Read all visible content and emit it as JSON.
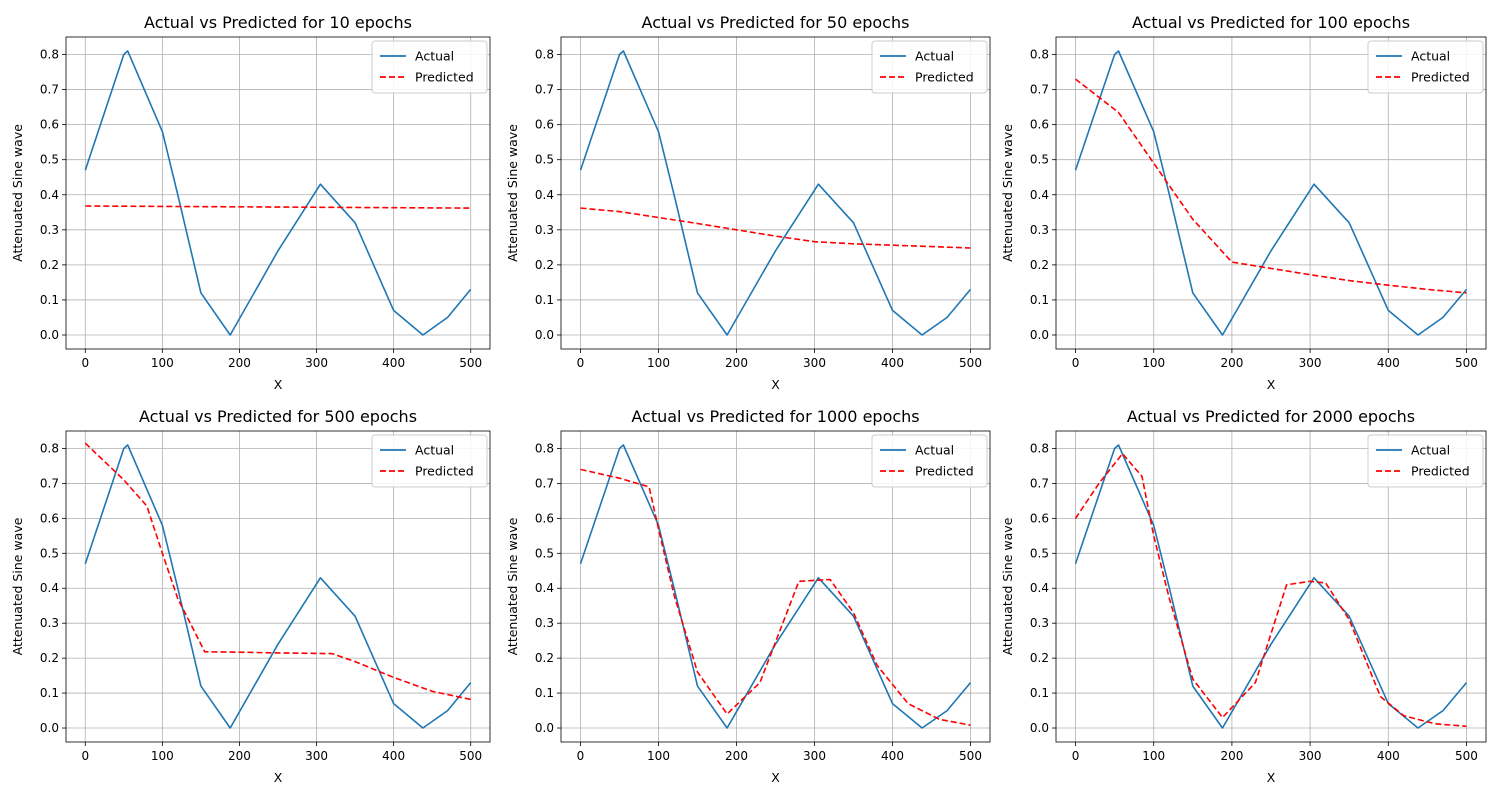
{
  "figure": {
    "colors": {
      "actual": "#1f77b4",
      "predicted": "#ff0000",
      "grid": "#b0b0b0",
      "axes": "#000000"
    }
  },
  "chart_data": [
    {
      "type": "line",
      "title": "Actual vs Predicted for 10 epochs",
      "xlabel": "X",
      "ylabel": "Attenuated Sine wave",
      "xlim": [
        -25,
        525
      ],
      "ylim": [
        -0.04,
        0.85
      ],
      "xticks": [
        0,
        100,
        200,
        300,
        400,
        500
      ],
      "yticks": [
        0.0,
        0.1,
        0.2,
        0.3,
        0.4,
        0.5,
        0.6,
        0.7,
        0.8
      ],
      "ytick_labels": [
        "0.0",
        "0.1",
        "0.2",
        "0.3",
        "0.4",
        "0.5",
        "0.6",
        "0.7",
        "0.8"
      ],
      "grid": true,
      "legend": "top-right",
      "series": [
        {
          "name": "Actual",
          "style": "solid",
          "x": [
            0,
            50,
            55,
            100,
            120,
            150,
            188,
            250,
            305,
            350,
            400,
            438,
            470,
            500
          ],
          "y": [
            0.47,
            0.8,
            0.81,
            0.58,
            0.4,
            0.12,
            0.0,
            0.24,
            0.43,
            0.32,
            0.07,
            0.0,
            0.05,
            0.13
          ]
        },
        {
          "name": "Predicted",
          "style": "dashed",
          "x": [
            0,
            500
          ],
          "y": [
            0.368,
            0.362
          ]
        }
      ]
    },
    {
      "type": "line",
      "title": "Actual vs Predicted for 50 epochs",
      "xlabel": "X",
      "ylabel": "Attenuated Sine wave",
      "xlim": [
        -25,
        525
      ],
      "ylim": [
        -0.04,
        0.85
      ],
      "xticks": [
        0,
        100,
        200,
        300,
        400,
        500
      ],
      "yticks": [
        0.0,
        0.1,
        0.2,
        0.3,
        0.4,
        0.5,
        0.6,
        0.7,
        0.8
      ],
      "ytick_labels": [
        "0.0",
        "0.1",
        "0.2",
        "0.3",
        "0.4",
        "0.5",
        "0.6",
        "0.7",
        "0.8"
      ],
      "grid": true,
      "legend": "top-right",
      "series": [
        {
          "name": "Actual",
          "style": "solid",
          "x": [
            0,
            50,
            55,
            100,
            120,
            150,
            188,
            250,
            305,
            350,
            400,
            438,
            470,
            500
          ],
          "y": [
            0.47,
            0.8,
            0.81,
            0.58,
            0.4,
            0.12,
            0.0,
            0.24,
            0.43,
            0.32,
            0.07,
            0.0,
            0.05,
            0.13
          ]
        },
        {
          "name": "Predicted",
          "style": "dashed",
          "x": [
            0,
            50,
            100,
            150,
            200,
            250,
            300,
            350,
            400,
            450,
            500
          ],
          "y": [
            0.362,
            0.352,
            0.335,
            0.318,
            0.3,
            0.282,
            0.266,
            0.26,
            0.256,
            0.252,
            0.248
          ]
        }
      ]
    },
    {
      "type": "line",
      "title": "Actual vs Predicted for 100 epochs",
      "xlabel": "X",
      "ylabel": "Attenuated Sine wave",
      "xlim": [
        -25,
        525
      ],
      "ylim": [
        -0.04,
        0.85
      ],
      "xticks": [
        0,
        100,
        200,
        300,
        400,
        500
      ],
      "yticks": [
        0.0,
        0.1,
        0.2,
        0.3,
        0.4,
        0.5,
        0.6,
        0.7,
        0.8
      ],
      "ytick_labels": [
        "0.0",
        "0.1",
        "0.2",
        "0.3",
        "0.4",
        "0.5",
        "0.6",
        "0.7",
        "0.8"
      ],
      "grid": true,
      "legend": "top-right",
      "series": [
        {
          "name": "Actual",
          "style": "solid",
          "x": [
            0,
            50,
            55,
            100,
            120,
            150,
            188,
            250,
            305,
            350,
            400,
            438,
            470,
            500
          ],
          "y": [
            0.47,
            0.8,
            0.81,
            0.58,
            0.4,
            0.12,
            0.0,
            0.24,
            0.43,
            0.32,
            0.07,
            0.0,
            0.05,
            0.13
          ]
        },
        {
          "name": "Predicted",
          "style": "dashed",
          "x": [
            0,
            55,
            100,
            150,
            200,
            250,
            300,
            350,
            400,
            450,
            500
          ],
          "y": [
            0.73,
            0.635,
            0.49,
            0.33,
            0.208,
            0.19,
            0.172,
            0.155,
            0.142,
            0.13,
            0.12
          ]
        }
      ]
    },
    {
      "type": "line",
      "title": "Actual vs Predicted for 500 epochs",
      "xlabel": "X",
      "ylabel": "Attenuated Sine wave",
      "xlim": [
        -25,
        525
      ],
      "ylim": [
        -0.04,
        0.85
      ],
      "xticks": [
        0,
        100,
        200,
        300,
        400,
        500
      ],
      "yticks": [
        0.0,
        0.1,
        0.2,
        0.3,
        0.4,
        0.5,
        0.6,
        0.7,
        0.8
      ],
      "ytick_labels": [
        "0.0",
        "0.1",
        "0.2",
        "0.3",
        "0.4",
        "0.5",
        "0.6",
        "0.7",
        "0.8"
      ],
      "grid": true,
      "legend": "top-right",
      "series": [
        {
          "name": "Actual",
          "style": "solid",
          "x": [
            0,
            50,
            55,
            100,
            120,
            150,
            188,
            250,
            305,
            350,
            400,
            438,
            470,
            500
          ],
          "y": [
            0.47,
            0.8,
            0.81,
            0.58,
            0.4,
            0.12,
            0.0,
            0.24,
            0.43,
            0.32,
            0.07,
            0.0,
            0.05,
            0.13
          ]
        },
        {
          "name": "Predicted",
          "style": "dashed",
          "x": [
            0,
            50,
            80,
            100,
            120,
            155,
            200,
            250,
            320,
            350,
            400,
            450,
            500
          ],
          "y": [
            0.815,
            0.71,
            0.635,
            0.5,
            0.37,
            0.218,
            0.217,
            0.215,
            0.213,
            0.19,
            0.145,
            0.105,
            0.082
          ]
        }
      ]
    },
    {
      "type": "line",
      "title": "Actual vs Predicted for 1000 epochs",
      "xlabel": "X",
      "ylabel": "Attenuated Sine wave",
      "xlim": [
        -25,
        525
      ],
      "ylim": [
        -0.04,
        0.85
      ],
      "xticks": [
        0,
        100,
        200,
        300,
        400,
        500
      ],
      "yticks": [
        0.0,
        0.1,
        0.2,
        0.3,
        0.4,
        0.5,
        0.6,
        0.7,
        0.8
      ],
      "ytick_labels": [
        "0.0",
        "0.1",
        "0.2",
        "0.3",
        "0.4",
        "0.5",
        "0.6",
        "0.7",
        "0.8"
      ],
      "grid": true,
      "legend": "top-right",
      "series": [
        {
          "name": "Actual",
          "style": "solid",
          "x": [
            0,
            50,
            55,
            100,
            120,
            150,
            188,
            250,
            305,
            350,
            400,
            438,
            470,
            500
          ],
          "y": [
            0.47,
            0.8,
            0.81,
            0.58,
            0.4,
            0.12,
            0.0,
            0.24,
            0.43,
            0.32,
            0.07,
            0.0,
            0.05,
            0.13
          ]
        },
        {
          "name": "Predicted",
          "style": "dashed",
          "x": [
            0,
            50,
            88,
            100,
            120,
            150,
            188,
            230,
            280,
            320,
            350,
            380,
            420,
            460,
            500
          ],
          "y": [
            0.74,
            0.715,
            0.69,
            0.57,
            0.38,
            0.16,
            0.04,
            0.13,
            0.42,
            0.425,
            0.33,
            0.18,
            0.07,
            0.025,
            0.008
          ]
        }
      ]
    },
    {
      "type": "line",
      "title": "Actual vs Predicted for 2000 epochs",
      "xlabel": "X",
      "ylabel": "Attenuated Sine wave",
      "xlim": [
        -25,
        525
      ],
      "ylim": [
        -0.04,
        0.85
      ],
      "xticks": [
        0,
        100,
        200,
        300,
        400,
        500
      ],
      "yticks": [
        0.0,
        0.1,
        0.2,
        0.3,
        0.4,
        0.5,
        0.6,
        0.7,
        0.8
      ],
      "ytick_labels": [
        "0.0",
        "0.1",
        "0.2",
        "0.3",
        "0.4",
        "0.5",
        "0.6",
        "0.7",
        "0.8"
      ],
      "grid": true,
      "legend": "top-right",
      "series": [
        {
          "name": "Actual",
          "style": "solid",
          "x": [
            0,
            50,
            55,
            100,
            120,
            150,
            188,
            250,
            305,
            350,
            400,
            438,
            470,
            500
          ],
          "y": [
            0.47,
            0.8,
            0.81,
            0.58,
            0.4,
            0.12,
            0.0,
            0.24,
            0.43,
            0.32,
            0.07,
            0.0,
            0.05,
            0.13
          ]
        },
        {
          "name": "Predicted",
          "style": "dashed",
          "x": [
            0,
            30,
            60,
            85,
            100,
            120,
            150,
            188,
            230,
            270,
            300,
            320,
            350,
            390,
            420,
            460,
            500
          ],
          "y": [
            0.6,
            0.7,
            0.785,
            0.72,
            0.55,
            0.37,
            0.14,
            0.03,
            0.13,
            0.41,
            0.42,
            0.415,
            0.31,
            0.09,
            0.035,
            0.012,
            0.005
          ]
        }
      ]
    }
  ]
}
